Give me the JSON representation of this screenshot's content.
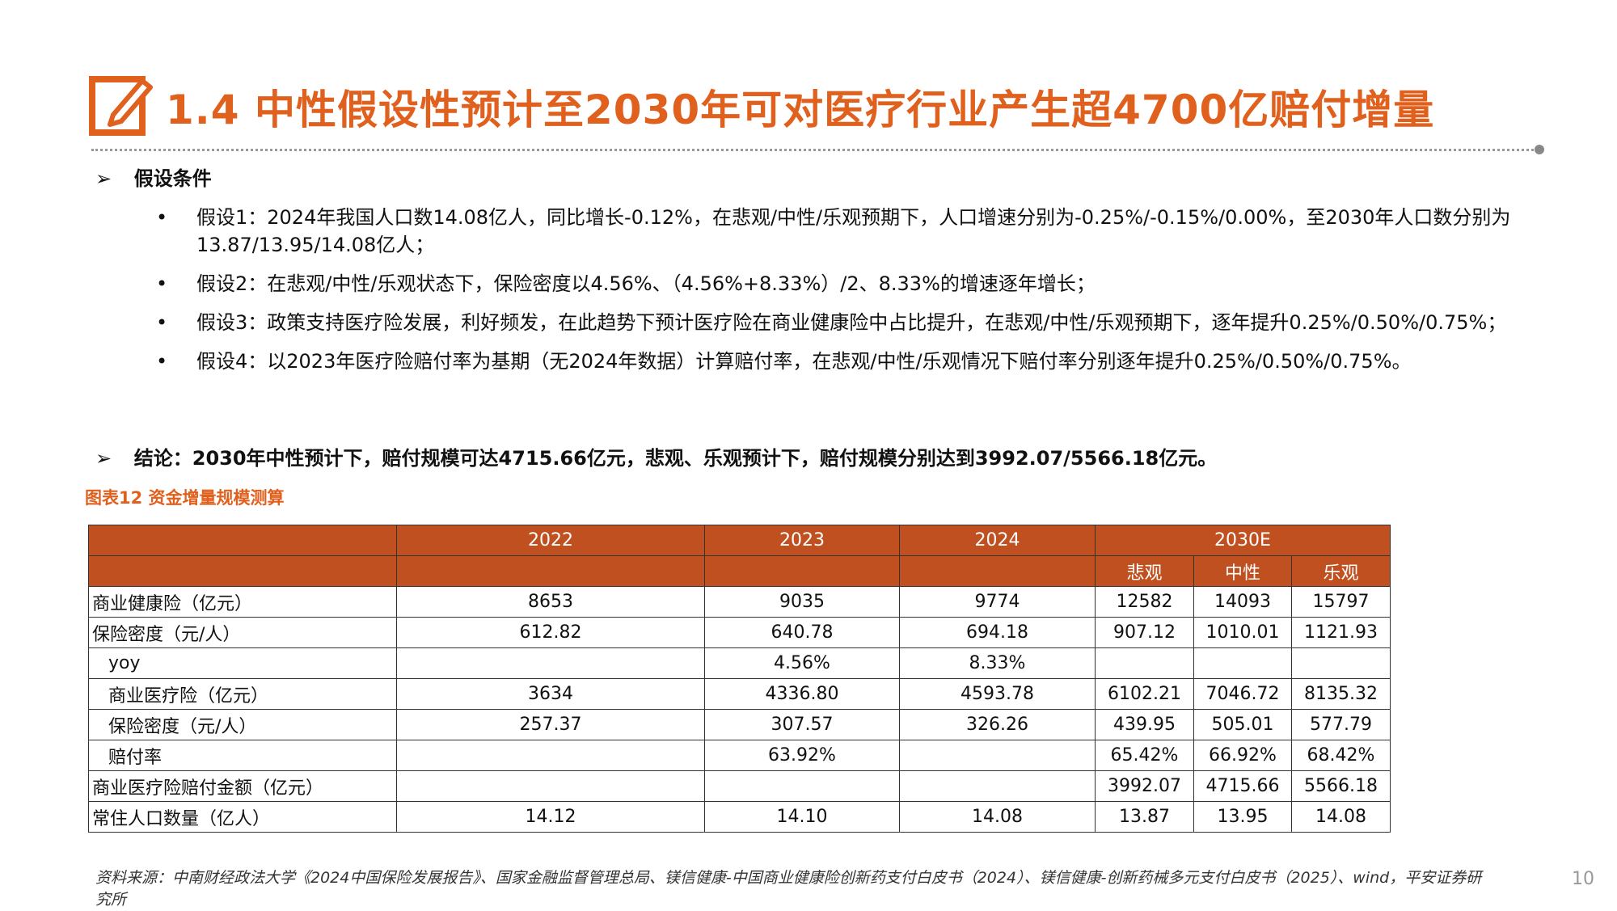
{
  "header": {
    "title": "1.4 中性假设性预计至2030年可对医疗行业产生超4700亿赔付增量"
  },
  "assumptions": {
    "heading": "假设条件",
    "items": [
      "假设1：2024年我国人口数14.08亿人，同比增长-0.12%，在悲观/中性/乐观预期下，人口增速分别为-0.25%/-0.15%/0.00%，至2030年人口数分别为13.87/13.95/14.08亿人；",
      "假设2：在悲观/中性/乐观状态下，保险密度以4.56%、（4.56%+8.33%）/2、8.33%的增速逐年增长；",
      "假设3：政策支持医疗险发展，利好频发，在此趋势下预计医疗险在商业健康险中占比提升，在悲观/中性/乐观预期下，逐年提升0.25%/0.50%/0.75%；",
      "假设4：以2023年医疗险赔付率为基期（无2024年数据）计算赔付率，在悲观/中性/乐观情况下赔付率分别逐年提升0.25%/0.50%/0.75%。"
    ]
  },
  "conclusion": "结论：2030年中性预计下，赔付规模可达4715.66亿元，悲观、乐观预计下，赔付规模分别达到3992.07/5566.18亿元。",
  "figure": {
    "caption": "图表12 资金增量规模测算",
    "years": [
      "2022",
      "2023",
      "2024",
      "2030E"
    ],
    "scenarios": [
      "悲观",
      "中性",
      "乐观"
    ],
    "rows": [
      [
        "商业健康险（亿元）",
        "8653",
        "9035",
        "9774",
        "12582",
        "14093",
        "15797"
      ],
      [
        "保险密度（元/人）",
        "612.82",
        "640.78",
        "694.18",
        "907.12",
        "1010.01",
        "1121.93"
      ],
      [
        "yoy",
        null,
        "4.56%",
        "8.33%",
        null,
        null,
        null
      ],
      [
        "商业医疗险（亿元）",
        "3634",
        "4336.80",
        "4593.78",
        "6102.21",
        "7046.72",
        "8135.32"
      ],
      [
        "保险密度（元/人）",
        "257.37",
        "307.57",
        "326.26",
        "439.95",
        "505.01",
        "577.79"
      ],
      [
        "赔付率",
        null,
        "63.92%",
        null,
        "65.42%",
        "66.92%",
        "68.42%"
      ],
      [
        "商业医疗险赔付金额（亿元）",
        null,
        null,
        null,
        "3992.07",
        "4715.66",
        "5566.18"
      ],
      [
        "常住人口数量（亿人）",
        "14.12",
        "14.10",
        "14.08",
        "13.87",
        "13.95",
        "14.08"
      ]
    ]
  },
  "source": "资料来源：中南财经政法大学《2024中国保险发展报告》、国家金融监督管理总局、镁信健康-中国商业健康险创新药支付白皮书（2024）、镁信健康-创新药械多元支付白皮书（2025）、wind，平安证券研究所",
  "page_number": "10"
}
